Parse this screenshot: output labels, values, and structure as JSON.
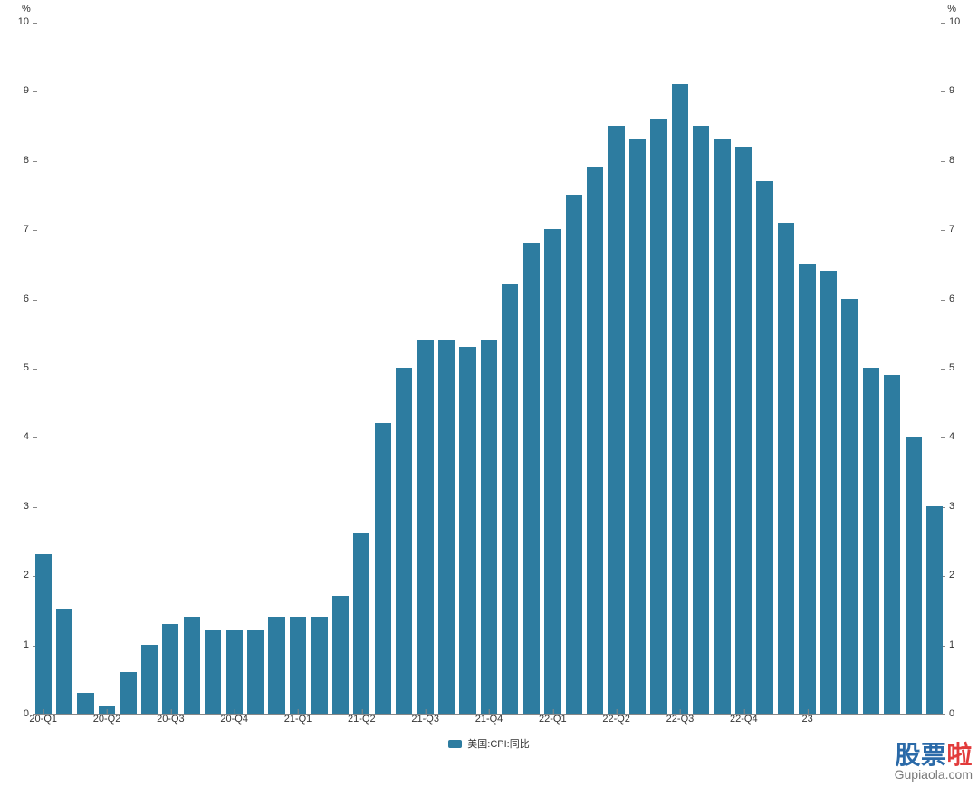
{
  "chart": {
    "type": "bar",
    "y_unit": "%",
    "ylim": [
      0,
      10
    ],
    "ytick_step": 1,
    "bar_color": "#2d7ca0",
    "background_color": "#ffffff",
    "axis_color": "#888888",
    "tick_fontsize": 11,
    "tick_color": "#333333",
    "bar_width_ratio": 0.78,
    "series_name": "美国:CPI:同比",
    "x_labels_major": [
      "20-Q1",
      "20-Q2",
      "20-Q3",
      "20-Q4",
      "21-Q1",
      "21-Q2",
      "21-Q3",
      "21-Q4",
      "22-Q1",
      "22-Q2",
      "22-Q3",
      "22-Q4",
      "23"
    ],
    "values": [
      2.3,
      1.5,
      0.3,
      0.1,
      0.6,
      1.0,
      1.3,
      1.4,
      1.2,
      1.2,
      1.2,
      1.4,
      1.4,
      1.4,
      1.7,
      2.6,
      4.2,
      5.0,
      5.4,
      5.4,
      5.3,
      5.4,
      6.2,
      6.8,
      7.0,
      7.5,
      7.9,
      8.5,
      8.3,
      8.6,
      9.1,
      8.5,
      8.3,
      8.2,
      7.7,
      7.1,
      6.5,
      6.4,
      6.0,
      5.0,
      4.9,
      4.0,
      3.0
    ],
    "x_tick_positions": [
      0,
      3,
      6,
      9,
      12,
      15,
      18,
      21,
      24,
      27,
      30,
      33,
      36
    ]
  },
  "legend": {
    "label": "美国:CPI:同比",
    "swatch_color": "#2d7ca0"
  },
  "watermark": {
    "text_cn_part1": "股票",
    "text_cn_part2": "啦",
    "url": "Gupiaola.com",
    "color_primary": "#2b6aa8",
    "color_accent": "#e23b3b",
    "url_color": "#7a7a7a"
  }
}
